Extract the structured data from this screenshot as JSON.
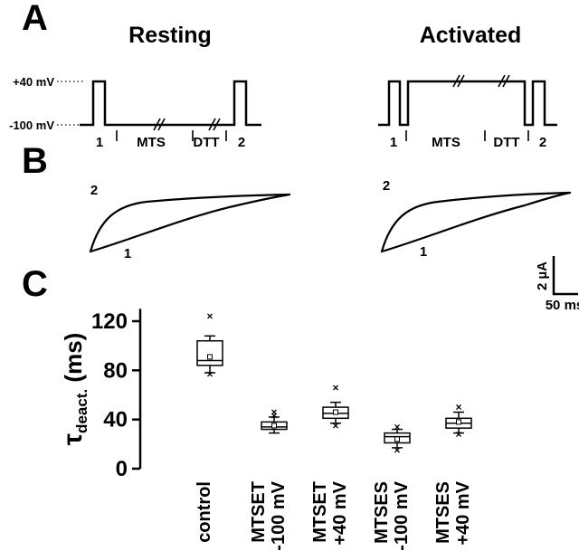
{
  "figure": {
    "panel_a": {
      "label": "A",
      "resting_title": "Resting",
      "activated_title": "Activated",
      "v_high": "+40 mV",
      "v_low": "-100 mV",
      "seq": {
        "p1": "1",
        "mts": "MTS",
        "dtt": "DTT",
        "p2": "2"
      }
    },
    "panel_b": {
      "label": "B",
      "trace2": "2",
      "trace1": "1",
      "scale_current": "2 µA",
      "scale_time": "50 ms"
    },
    "panel_c": {
      "label": "C"
    }
  },
  "chart_data": {
    "type": "boxplot",
    "title": "",
    "ylabel": "τdeact. (ms)",
    "ylabel_parts": {
      "symbol": "τ",
      "sub": "deact.",
      "unit": " (ms)"
    },
    "yticks": [
      0,
      40,
      80,
      120
    ],
    "ylim": [
      0,
      130
    ],
    "grid": false,
    "categories": [
      {
        "lines": [
          "control"
        ]
      },
      {
        "lines": [
          "MTSET",
          "-100 mV"
        ]
      },
      {
        "lines": [
          "MTSET",
          "+40 mV"
        ]
      },
      {
        "lines": [
          "MTSES",
          "-100 mV"
        ]
      },
      {
        "lines": [
          "MTSES",
          "+40 mV"
        ]
      }
    ],
    "series": [
      {
        "name": "control",
        "whisker_low": 78,
        "q1": 84,
        "median": 88,
        "mean": 91,
        "q3": 104,
        "whisker_high": 108,
        "outliers": [
          124,
          77
        ]
      },
      {
        "name": "MTSET -100 mV",
        "whisker_low": 29,
        "q1": 32,
        "median": 34,
        "mean": 35,
        "q3": 38,
        "whisker_high": 42,
        "outliers": [
          46,
          43
        ]
      },
      {
        "name": "MTSET +40 mV",
        "whisker_low": 37,
        "q1": 41,
        "median": 45,
        "mean": 46,
        "q3": 50,
        "whisker_high": 54,
        "outliers": [
          66,
          35
        ]
      },
      {
        "name": "MTSES -100 mV",
        "whisker_low": 17,
        "q1": 21,
        "median": 26,
        "mean": 24,
        "q3": 29,
        "whisker_high": 32,
        "outliers": [
          34,
          15
        ]
      },
      {
        "name": "MTSES +40 mV",
        "whisker_low": 29,
        "q1": 33,
        "median": 37,
        "mean": 38,
        "q3": 41,
        "whisker_high": 46,
        "outliers": [
          50,
          28
        ]
      }
    ]
  }
}
